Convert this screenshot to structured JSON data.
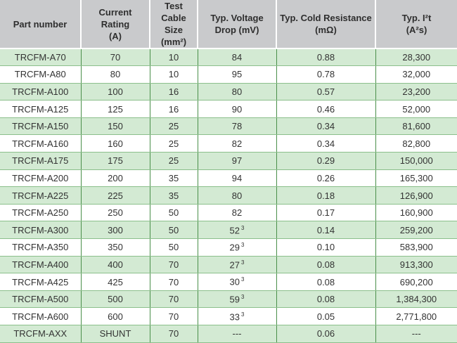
{
  "headers": [
    [
      "Part number"
    ],
    [
      "Current Rating",
      "(A)"
    ],
    [
      "Test Cable",
      "Size (mm²)"
    ],
    [
      "Typ. Voltage",
      "Drop (mV)"
    ],
    [
      "Typ. Cold Resistance",
      "(mΩ)"
    ],
    [
      "Typ. I²t",
      "(A²s)"
    ]
  ],
  "rows": [
    {
      "part": "TRCFM-A70",
      "current": "70",
      "cable": "10",
      "drop": "84",
      "fn": "",
      "resistance": "0.88",
      "i2t": "28,300"
    },
    {
      "part": "TRCFM-A80",
      "current": "80",
      "cable": "10",
      "drop": "95",
      "fn": "",
      "resistance": "0.78",
      "i2t": "32,000"
    },
    {
      "part": "TRCFM-A100",
      "current": "100",
      "cable": "16",
      "drop": "80",
      "fn": "",
      "resistance": "0.57",
      "i2t": "23,200"
    },
    {
      "part": "TRCFM-A125",
      "current": "125",
      "cable": "16",
      "drop": "90",
      "fn": "",
      "resistance": "0.46",
      "i2t": "52,000"
    },
    {
      "part": "TRCFM-A150",
      "current": "150",
      "cable": "25",
      "drop": "78",
      "fn": "",
      "resistance": "0.34",
      "i2t": "81,600"
    },
    {
      "part": "TRCFM-A160",
      "current": "160",
      "cable": "25",
      "drop": "82",
      "fn": "",
      "resistance": "0.34",
      "i2t": "82,800"
    },
    {
      "part": "TRCFM-A175",
      "current": "175",
      "cable": "25",
      "drop": "97",
      "fn": "",
      "resistance": "0.29",
      "i2t": "150,000"
    },
    {
      "part": "TRCFM-A200",
      "current": "200",
      "cable": "35",
      "drop": "94",
      "fn": "",
      "resistance": "0.26",
      "i2t": "165,300"
    },
    {
      "part": "TRCFM-A225",
      "current": "225",
      "cable": "35",
      "drop": "80",
      "fn": "",
      "resistance": "0.18",
      "i2t": "126,900"
    },
    {
      "part": "TRCFM-A250",
      "current": "250",
      "cable": "50",
      "drop": "82",
      "fn": "",
      "resistance": "0.17",
      "i2t": "160,900"
    },
    {
      "part": "TRCFM-A300",
      "current": "300",
      "cable": "50",
      "drop": "52",
      "fn": "3",
      "resistance": "0.14",
      "i2t": "259,200"
    },
    {
      "part": "TRCFM-A350",
      "current": "350",
      "cable": "50",
      "drop": "29",
      "fn": "3",
      "resistance": "0.10",
      "i2t": "583,900"
    },
    {
      "part": "TRCFM-A400",
      "current": "400",
      "cable": "70",
      "drop": "27",
      "fn": "3",
      "resistance": "0.08",
      "i2t": "913,300"
    },
    {
      "part": "TRCFM-A425",
      "current": "425",
      "cable": "70",
      "drop": "30",
      "fn": "3",
      "resistance": "0.08",
      "i2t": "690,200"
    },
    {
      "part": "TRCFM-A500",
      "current": "500",
      "cable": "70",
      "drop": "59",
      "fn": "3",
      "resistance": "0.08",
      "i2t": "1,384,300"
    },
    {
      "part": "TRCFM-A600",
      "current": "600",
      "cable": "70",
      "drop": "33",
      "fn": "3",
      "resistance": "0.05",
      "i2t": "2,771,800"
    },
    {
      "part": "TRCFM-AXX",
      "current": "SHUNT",
      "cable": "70",
      "drop": "---",
      "fn": "",
      "resistance": "0.06",
      "i2t": "---"
    }
  ],
  "colors": {
    "header_bg": "#c9cacc",
    "row_green": "#d3ead3",
    "row_white": "#ffffff",
    "grid_line": "#4a8f4a"
  }
}
